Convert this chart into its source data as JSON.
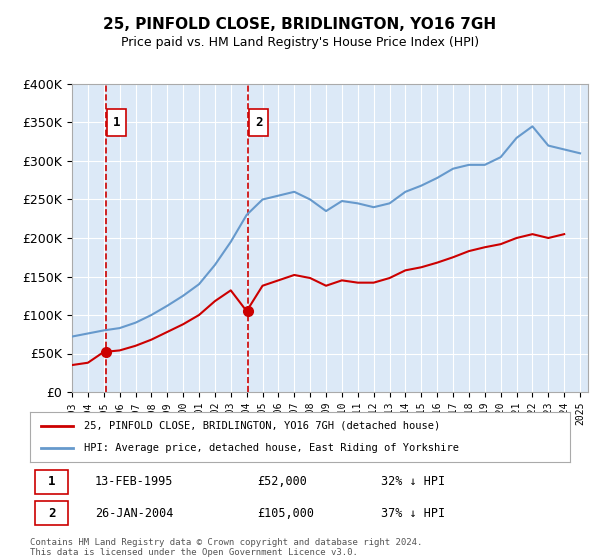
{
  "title": "25, PINFOLD CLOSE, BRIDLINGTON, YO16 7GH",
  "subtitle": "Price paid vs. HM Land Registry's House Price Index (HPI)",
  "legend_line1": "25, PINFOLD CLOSE, BRIDLINGTON, YO16 7GH (detached house)",
  "legend_line2": "HPI: Average price, detached house, East Riding of Yorkshire",
  "sale1_label": "1",
  "sale1_date": "13-FEB-1995",
  "sale1_price": "£52,000",
  "sale1_hpi": "32% ↓ HPI",
  "sale1_year": 1995.11,
  "sale1_value": 52000,
  "sale2_label": "2",
  "sale2_date": "26-JAN-2004",
  "sale2_price": "£105,000",
  "sale2_hpi": "37% ↓ HPI",
  "sale2_year": 2004.07,
  "sale2_value": 105000,
  "footnote": "Contains HM Land Registry data © Crown copyright and database right 2024.\nThis data is licensed under the Open Government Licence v3.0.",
  "ylim": [
    0,
    400000
  ],
  "xlim_start": 1993,
  "xlim_end": 2025.5,
  "bg_color": "#dce9f7",
  "plot_bg": "#dce9f7",
  "hatch_color": "#b0bfcc",
  "red_line_color": "#cc0000",
  "blue_line_color": "#6699cc",
  "vline_color": "#cc0000",
  "sale_dot_color": "#cc0000",
  "box_edge_color": "#cc0000",
  "yticks": [
    0,
    50000,
    100000,
    150000,
    200000,
    250000,
    300000,
    350000,
    400000
  ],
  "ytick_labels": [
    "£0",
    "£50K",
    "£100K",
    "£150K",
    "£200K",
    "£250K",
    "£300K",
    "£350K",
    "£400K"
  ],
  "hpi_years": [
    1993,
    1994,
    1995,
    1996,
    1997,
    1998,
    1999,
    2000,
    2001,
    2002,
    2003,
    2004,
    2005,
    2006,
    2007,
    2008,
    2009,
    2010,
    2011,
    2012,
    2013,
    2014,
    2015,
    2016,
    2017,
    2018,
    2019,
    2020,
    2021,
    2022,
    2023,
    2024,
    2025
  ],
  "hpi_values": [
    72000,
    76000,
    80000,
    83000,
    90000,
    100000,
    112000,
    125000,
    140000,
    165000,
    195000,
    230000,
    250000,
    255000,
    260000,
    250000,
    235000,
    248000,
    245000,
    240000,
    245000,
    260000,
    268000,
    278000,
    290000,
    295000,
    295000,
    305000,
    330000,
    345000,
    320000,
    315000,
    310000
  ],
  "red_years": [
    1993,
    1994,
    1995,
    1996,
    1997,
    1998,
    1999,
    2000,
    2001,
    2002,
    2003,
    2004,
    2005,
    2006,
    2007,
    2008,
    2009,
    2010,
    2011,
    2012,
    2013,
    2014,
    2015,
    2016,
    2017,
    2018,
    2019,
    2020,
    2021,
    2022,
    2023,
    2024
  ],
  "red_values": [
    35000,
    38000,
    52000,
    54000,
    60000,
    68000,
    78000,
    88000,
    100000,
    118000,
    132000,
    105000,
    138000,
    145000,
    152000,
    148000,
    138000,
    145000,
    142000,
    142000,
    148000,
    158000,
    162000,
    168000,
    175000,
    183000,
    188000,
    192000,
    200000,
    205000,
    200000,
    205000
  ]
}
